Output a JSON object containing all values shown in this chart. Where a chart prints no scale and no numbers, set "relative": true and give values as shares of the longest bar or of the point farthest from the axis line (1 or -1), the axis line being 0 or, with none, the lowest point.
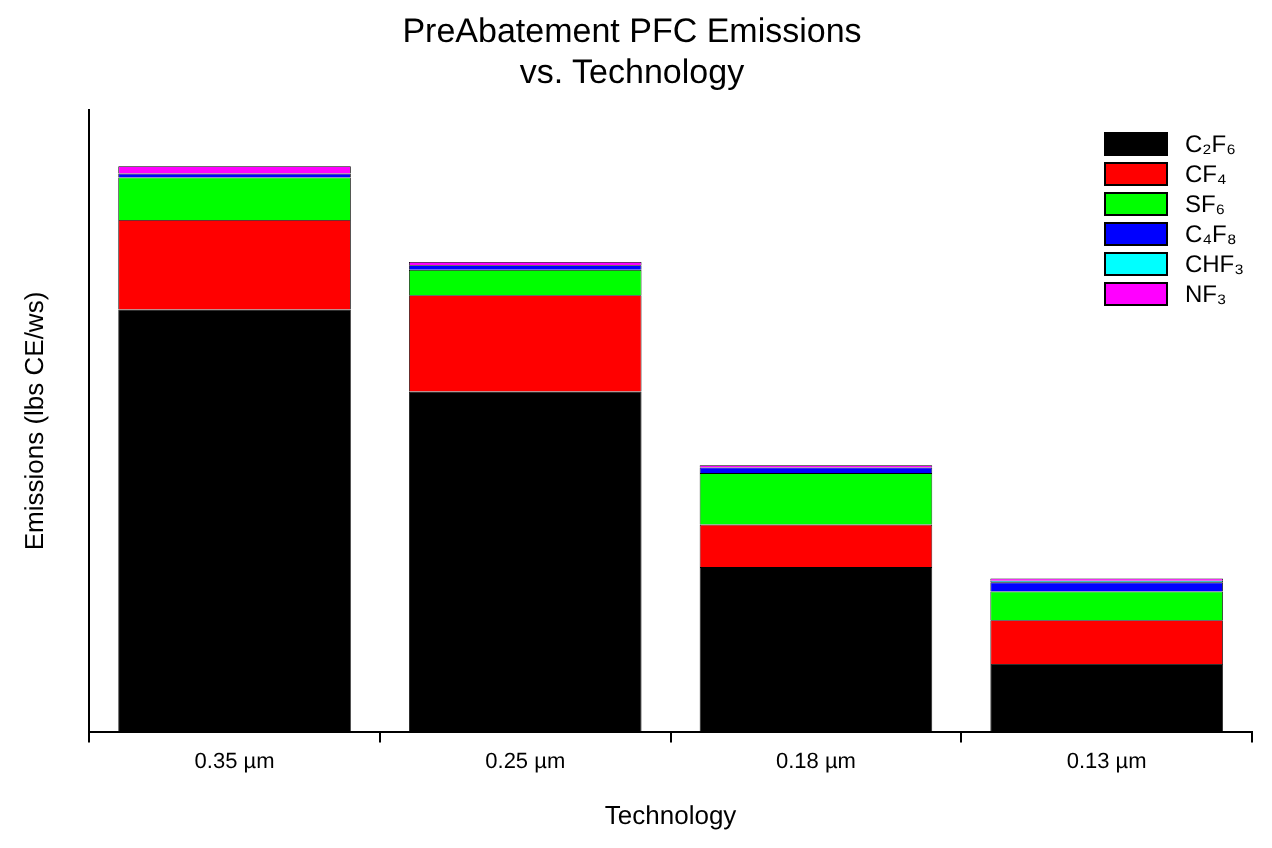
{
  "chart_data": {
    "type": "bar",
    "title": [
      "PreAbatement PFC Emissions",
      "vs. Technology"
    ],
    "xlabel": "Technology",
    "ylabel": "Emissions (lbs CE/ws)",
    "categories": [
      "0.35 µm",
      "0.25 µm",
      "0.18 µm",
      "0.13 µm"
    ],
    "stacked": true,
    "relative": true,
    "legend": "top right",
    "series": [
      {
        "name": "C₂F₆",
        "color": "#000000",
        "values": [
          0.747,
          0.602,
          0.292,
          0.121
        ]
      },
      {
        "name": "CF₄",
        "color": "#ff0000",
        "values": [
          0.158,
          0.17,
          0.075,
          0.077
        ]
      },
      {
        "name": "SF₆",
        "color": "#00ff00",
        "values": [
          0.075,
          0.045,
          0.091,
          0.051
        ]
      },
      {
        "name": "C₄F₈",
        "color": "#0000ff",
        "values": [
          0.007,
          0.008,
          0.01,
          0.016
        ]
      },
      {
        "name": "CHF₃",
        "color": "#00ffff",
        "values": [
          null,
          null,
          null,
          0.003
        ]
      },
      {
        "name": "NF₃",
        "color": "#ff00ff",
        "values": [
          0.013,
          0.006,
          0.004,
          0.004
        ]
      }
    ]
  }
}
